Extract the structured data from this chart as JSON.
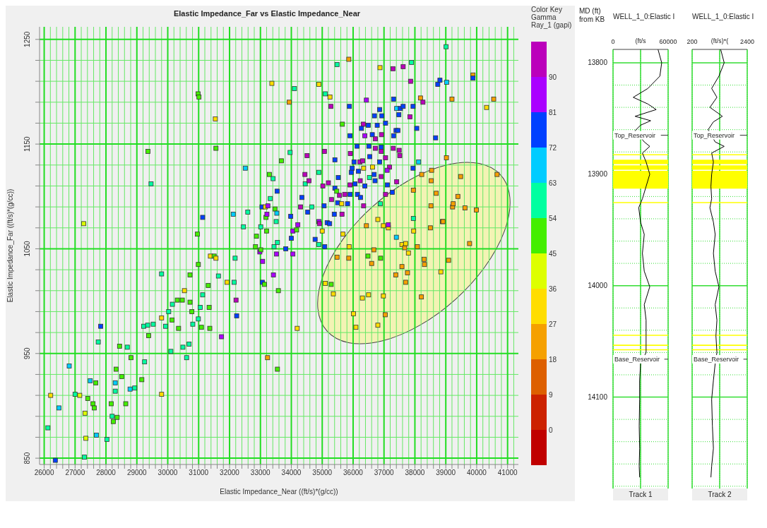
{
  "chart_data": [
    {
      "type": "scatter",
      "title": "Elastic Impedance_Far vs Elastic Impedance_Near",
      "xlabel": "Elastic Impedance_Near ((ft/s)*(g/cc))",
      "ylabel": "Elastic Impedance_Far ((ft/s)*(g/cc))",
      "legend_title": "Color Key",
      "clabel": "Gamma Ray_1 (gapi)",
      "marker": "square",
      "grid": true,
      "xlim": [
        25850,
        41350
      ],
      "ylim": [
        844,
        1262
      ],
      "xticks": [
        26000,
        {
          "value": 26200,
          "label": null
        },
        {
          "value": 26400,
          "label": null
        },
        {
          "value": 26600,
          "label": null
        },
        {
          "value": 26800,
          "label": null
        },
        27000,
        {
          "value": 27200,
          "label": null
        },
        {
          "value": 27400,
          "label": null
        },
        {
          "value": 27600,
          "label": null
        },
        {
          "value": 27800,
          "label": null
        },
        28000,
        {
          "value": 28200,
          "label": null
        },
        {
          "value": 28400,
          "label": null
        },
        {
          "value": 28600,
          "label": null
        },
        {
          "value": 28800,
          "label": null
        },
        29000,
        {
          "value": 29200,
          "label": null
        },
        {
          "value": 29400,
          "label": null
        },
        {
          "value": 29600,
          "label": null
        },
        {
          "value": 29800,
          "label": null
        },
        30000,
        {
          "value": 30200,
          "label": null
        },
        {
          "value": 30400,
          "label": null
        },
        {
          "value": 30600,
          "label": null
        },
        {
          "value": 30800,
          "label": null
        },
        31000,
        {
          "value": 31200,
          "label": null
        },
        {
          "value": 31400,
          "label": null
        },
        {
          "value": 31600,
          "label": null
        },
        {
          "value": 31800,
          "label": null
        },
        32000,
        {
          "value": 32200,
          "label": null
        },
        {
          "value": 32400,
          "label": null
        },
        {
          "value": 32600,
          "label": null
        },
        {
          "value": 32800,
          "label": null
        },
        33000,
        {
          "value": 33200,
          "label": null
        },
        {
          "value": 33400,
          "label": null
        },
        {
          "value": 33600,
          "label": null
        },
        {
          "value": 33800,
          "label": null
        },
        34000,
        {
          "value": 34200,
          "label": null
        },
        {
          "value": 34400,
          "label": null
        },
        {
          "value": 34600,
          "label": null
        },
        {
          "value": 34800,
          "label": null
        },
        35000,
        {
          "value": 35200,
          "label": null
        },
        {
          "value": 35400,
          "label": null
        },
        {
          "value": 35600,
          "label": null
        },
        {
          "value": 35800,
          "label": null
        },
        36000,
        {
          "value": 36200,
          "label": null
        },
        {
          "value": 36400,
          "label": null
        },
        {
          "value": 36600,
          "label": null
        },
        {
          "value": 36800,
          "label": null
        },
        37000,
        {
          "value": 37200,
          "label": null
        },
        {
          "value": 37400,
          "label": null
        },
        {
          "value": 37600,
          "label": null
        },
        {
          "value": 37800,
          "label": null
        },
        38000,
        {
          "value": 38200,
          "label": null
        },
        {
          "value": 38400,
          "label": null
        },
        {
          "value": 38600,
          "label": null
        },
        {
          "value": 38800,
          "label": null
        },
        39000,
        {
          "value": 39200,
          "label": null
        },
        {
          "value": 39400,
          "label": null
        },
        {
          "value": 39600,
          "label": null
        },
        {
          "value": 39800,
          "label": null
        },
        40000,
        {
          "value": 40200,
          "label": null
        },
        {
          "value": 40400,
          "label": null
        },
        {
          "value": 40600,
          "label": null
        },
        {
          "value": 40800,
          "label": null
        },
        41000,
        {
          "value": 41200,
          "label": null
        }
      ],
      "yticks": [
        850,
        {
          "value": 870,
          "label": null
        },
        {
          "value": 890,
          "label": null
        },
        {
          "value": 910,
          "label": null
        },
        {
          "value": 930,
          "label": null
        },
        950,
        {
          "value": 970,
          "label": null
        },
        {
          "value": 990,
          "label": null
        },
        {
          "value": 1010,
          "label": null
        },
        {
          "value": 1030,
          "label": null
        },
        1050,
        {
          "value": 1070,
          "label": null
        },
        {
          "value": 1090,
          "label": null
        },
        {
          "value": 1110,
          "label": null
        },
        {
          "value": 1130,
          "label": null
        },
        1150,
        {
          "value": 1170,
          "label": null
        },
        {
          "value": 1190,
          "label": null
        },
        {
          "value": 1210,
          "label": null
        },
        {
          "value": 1230,
          "label": null
        },
        1250
      ],
      "clim": [
        -9,
        99
      ],
      "cticks": [
        0,
        9,
        18,
        27,
        36,
        45,
        54,
        63,
        72,
        81,
        90
      ],
      "x": [
        26120,
        26210,
        26360,
        26480,
        26810,
        27000,
        27150,
        27280,
        27320,
        27300,
        27350,
        27410,
        27490,
        27580,
        27620,
        27670,
        27690,
        27750,
        27830,
        28030,
        28170,
        28200,
        28240,
        28300,
        28330,
        28360,
        28300,
        28440,
        28510,
        28640,
        28690,
        28780,
        28810,
        28930,
        29160,
        29250,
        29220,
        29350,
        29360,
        29380,
        29460,
        29530,
        29800,
        29800,
        29800,
        29930,
        30030,
        30100,
        30140,
        30150,
        30310,
        30350,
        30470,
        30490,
        30540,
        30610,
        30690,
        30720,
        30720,
        30780,
        30810,
        30960,
        30980,
        30990,
        30990,
        31010,
        31050,
        31090,
        31130,
        31130,
        31310,
        31340,
        31360,
        31380,
        31500,
        31540,
        31560,
        31560,
        31640,
        31740,
        31920,
        32120,
        32150,
        32180,
        32210,
        32230,
        32450,
        32510,
        32590,
        32840,
        32870,
        32980,
        33010,
        33010,
        33050,
        33070,
        33060,
        33130,
        33160,
        33180,
        33200,
        33210,
        33230,
        33240,
        33290,
        33320,
        33370,
        33410,
        33420,
        33440,
        33470,
        33510,
        33520,
        33530,
        33540,
        33550,
        33580,
        33550,
        33930,
        34100,
        33960,
        33680,
        34510,
        34440,
        34450,
        34570,
        34340,
        34300,
        34660,
        34530,
        33980,
        34050,
        34170,
        34210,
        34000,
        33820,
        34050,
        34890,
        35100,
        35250,
        35280,
        35480,
        35860,
        35070,
        35410,
        34890,
        35020,
        35200,
        35520,
        35410,
        35470,
        35300,
        35500,
        35630,
        35560,
        35730,
        35820,
        35900,
        35640,
        35390,
        35060,
        34890,
        34910,
        35000,
        35160,
        35240,
        34770,
        34890,
        35080,
        35670,
        35650,
        35880,
        35900,
        36130,
        35910,
        36030,
        35970,
        35940,
        36170,
        36220,
        36310,
        36340,
        36230,
        36060,
        35900,
        36380,
        36140,
        36240,
        36340,
        36430,
        36330,
        36270,
        36490,
        36380,
        36510,
        36540,
        36630,
        36530,
        36620,
        36690,
        36720,
        36720,
        36860,
        36930,
        36780,
        36920,
        36910,
        36910,
        36860,
        36910,
        36680,
        36710,
        37050,
        37050,
        37180,
        37100,
        37110,
        36870,
        37290,
        37620,
        37890,
        37860,
        37310,
        37410,
        37530,
        37620,
        37480,
        37940,
        37840,
        37390,
        37450,
        37310,
        37490,
        37510,
        37300,
        38060,
        37940,
        37410,
        38120,
        37270,
        37050,
        36880,
        38180,
        38260,
        38670,
        38740,
        38810,
        39010,
        39030,
        39200,
        39880,
        39880,
        40320,
        40550,
        34190,
        35100,
        35290,
        35360,
        35480,
        35860,
        35870,
        36010,
        36090,
        36300,
        36500,
        36430,
        36480,
        36600,
        36670,
        36800,
        36890,
        36980,
        36980,
        37040,
        36800,
        37140,
        37140,
        37400,
        37380,
        37580,
        37670,
        37700,
        37790,
        37580,
        37760,
        37700,
        37950,
        37950,
        37960,
        38080,
        38220,
        38210,
        38300,
        38310,
        38500,
        38520,
        38530,
        38540,
        38690,
        38840,
        38890,
        38910,
        39020,
        39090,
        39220,
        39240,
        39390,
        39480,
        39620,
        39770,
        39990,
        40660
      ],
      "values": [
        879,
        910,
        848,
        898,
        938,
        911,
        910,
        1074,
        893,
        851,
        869,
        907,
        924,
        902,
        898,
        922,
        872,
        961,
        976,
        868,
        902,
        890,
        885,
        922,
        935,
        889,
        914,
        957,
        928,
        902,
        956,
        916,
        946,
        917,
        925,
        942,
        976,
        977,
        1143,
        967,
        1112,
        978,
        984,
        1026,
        911,
        976,
        990,
        952,
        982,
        997,
        1001,
        974,
        1001,
        956,
        1010,
        946,
        959,
        1025,
        999,
        990,
        978,
        1064,
        1198,
        983,
        1035,
        1195,
        994,
        975,
        1080,
        1006,
        1015,
        994,
        974,
        1043,
        1043,
        1174,
        1146,
        1041,
        1024,
        966,
        1018,
        1083,
        1018,
        1041,
        1001,
        986,
        1071,
        1127,
        1085,
        1052,
        1062,
        1047,
        1049,
        1071,
        1090,
        1038,
        1018,
        1016,
        1090,
        1080,
        1067,
        1083,
        946,
        1091,
        1121,
        1098,
        1208,
        1117,
        1025,
        1052,
        1088,
        1076,
        1045,
        1084,
        1105,
        935,
        1010,
        1056,
        1190,
        1203,
        1142,
        1134,
        1139,
        1121,
        1112,
        1115,
        1099,
        1090,
        1090,
        1085,
        1081,
        1067,
        1068,
        1073,
        1060,
        1050,
        1045,
        1207,
        1198,
        1195,
        1186,
        1226,
        1231,
        1143,
        1135,
        1123,
        1110,
        1113,
        1118,
        1108,
        1105,
        1097,
        1094,
        1093,
        1101,
        1102,
        1093,
        1102,
        1083,
        1083,
        1091,
        1076,
        1074,
        1067,
        1075,
        1074,
        1059,
        1054,
        1052,
        1064,
        1169,
        1186,
        1158,
        1148,
        1141,
        1133,
        1127,
        1123,
        1124,
        1133,
        1134,
        1127,
        1115,
        1112,
        1111,
        1110,
        1102,
        1099,
        1091,
        1192,
        1169,
        1165,
        1168,
        1158,
        1148,
        1138,
        1128,
        1118,
        1159,
        1177,
        1155,
        1146,
        1183,
        1177,
        1168,
        1159,
        1147,
        1143,
        1133,
        1119,
        1121,
        1115,
        1170,
        1137,
        1128,
        1125,
        1111,
        1223,
        1222,
        1224,
        1228,
        1210,
        1193,
        1184,
        1184,
        1186,
        1178,
        1186,
        1176,
        1163,
        1163,
        1158,
        1144,
        1139,
        1146,
        1165,
        1127,
        1114,
        1133,
        1104,
        1102,
        1093,
        1194,
        1190,
        1156,
        1207,
        1211,
        1243,
        1209,
        1193,
        1216,
        1213,
        1185,
        1193,
        974,
        1017,
        1016,
        1007,
        1042,
        1041,
        1052,
        988,
        975,
        1003,
        1006,
        1072,
        1043,
        1036,
        1049,
        1078,
        1041,
        1072,
        1005,
        987,
        977,
        1070,
        1073,
        1061,
        1025,
        1054,
        1051,
        1055,
        1046,
        1033,
        1027,
        1018,
        1106,
        1079,
        1067,
        1052,
        1121,
        1004,
        1040,
        1035,
        1070,
        1091,
        1115,
        1125,
        1103,
        1028,
        1076,
        1076,
        1137,
        1039,
        1090,
        1093,
        1100,
        1119,
        1089,
        1055,
        1087,
        1121
      ],
      "cvalues": [
        58,
        31,
        76,
        67,
        67,
        58,
        40,
        40,
        40,
        58,
        40,
        50,
        67,
        50,
        50,
        50,
        67,
        58,
        76,
        58,
        50,
        58,
        50,
        67,
        50,
        50,
        58,
        50,
        50,
        50,
        58,
        67,
        50,
        58,
        50,
        58,
        58,
        58,
        50,
        50,
        58,
        58,
        31,
        58,
        31,
        58,
        58,
        58,
        50,
        58,
        50,
        50,
        50,
        58,
        31,
        58,
        58,
        50,
        50,
        50,
        58,
        50,
        50,
        58,
        50,
        50,
        58,
        50,
        76,
        58,
        50,
        50,
        50,
        31,
        50,
        31,
        50,
        31,
        58,
        85,
        31,
        67,
        58,
        58,
        95,
        76,
        58,
        67,
        58,
        50,
        50,
        85,
        50,
        58,
        76,
        85,
        76,
        50,
        31,
        50,
        50,
        85,
        22,
        85,
        50,
        58,
        31,
        58,
        85,
        58,
        50,
        58,
        85,
        67,
        76,
        50,
        50,
        58,
        22,
        58,
        58,
        50,
        95,
        95,
        58,
        95,
        76,
        95,
        58,
        76,
        76,
        85,
        50,
        85,
        76,
        76,
        85,
        31,
        58,
        31,
        95,
        58,
        22,
        95,
        76,
        58,
        95,
        95,
        76,
        76,
        50,
        95,
        76,
        31,
        95,
        95,
        76,
        76,
        95,
        76,
        76,
        85,
        95,
        31,
        76,
        76,
        76,
        58,
        76,
        31,
        50,
        76,
        76,
        76,
        95,
        76,
        76,
        76,
        76,
        95,
        95,
        31,
        95,
        76,
        95,
        76,
        76,
        76,
        95,
        85,
        95,
        76,
        76,
        85,
        76,
        76,
        31,
        58,
        76,
        76,
        95,
        95,
        76,
        76,
        76,
        95,
        76,
        95,
        76,
        95,
        76,
        76,
        76,
        95,
        95,
        85,
        76,
        31,
        95,
        95,
        58,
        95,
        76,
        67,
        76,
        76,
        76,
        76,
        95,
        76,
        76,
        76,
        95,
        95,
        95,
        76,
        76,
        95,
        67,
        76,
        95,
        58,
        22,
        95,
        76,
        76,
        76,
        58,
        67,
        22,
        22,
        76,
        31,
        22,
        31,
        31,
        50,
        31,
        22,
        22,
        31,
        31,
        31,
        31,
        31,
        22,
        50,
        22,
        22,
        31,
        50,
        31,
        31,
        22,
        31,
        31,
        85,
        67,
        22,
        31,
        22,
        31,
        31,
        22,
        22,
        22,
        22,
        58,
        31,
        22,
        22,
        22,
        22,
        22,
        22,
        22,
        22,
        22,
        22,
        31,
        22,
        22,
        22,
        22,
        22,
        22,
        22,
        22,
        22,
        22,
        22,
        22
      ]
    },
    {
      "type": "line",
      "title": "WELL_1_0:Elastic I",
      "subtitle": "(ft/s",
      "xlabel": "Track 1",
      "ylabel": "MD (ft) from KB",
      "marker": "none",
      "grid": true,
      "xlim": [
        0,
        60000
      ],
      "xticks": [
        0,
        {
          "value": 30000,
          "label": null
        },
        60000
      ],
      "ylim": [
        14182,
        13788
      ],
      "yticks": [
        13800,
        {
          "value": 13820,
          "label": null
        },
        {
          "value": 13840,
          "label": null
        },
        {
          "value": 13860,
          "label": null
        },
        {
          "value": 13880,
          "label": null
        },
        13900,
        {
          "value": 13920,
          "label": null
        },
        {
          "value": 13940,
          "label": null
        },
        {
          "value": 13960,
          "label": null
        },
        {
          "value": 13980,
          "label": null
        },
        14000,
        {
          "value": 14020,
          "label": null
        },
        {
          "value": 14040,
          "label": null
        },
        {
          "value": 14060,
          "label": null
        },
        {
          "value": 14080,
          "label": null
        },
        14100,
        {
          "value": 14120,
          "label": null
        },
        {
          "value": 14140,
          "label": null
        },
        {
          "value": 14160,
          "label": null
        },
        {
          "value": 14180,
          "label": null
        }
      ],
      "series": [
        {
          "color": "#000000",
          "x": [
            49000,
            53000,
            51000,
            38000,
            22000,
            38000,
            47000,
            24000,
            41000,
            30000,
            24000,
            null,
            34000,
            40000,
            32000,
            36000,
            40000,
            36000,
            32000,
            28000,
            30000,
            34000,
            32000,
            34000,
            40000,
            34000,
            36000,
            36000,
            36000,
            null,
            30000,
            29000,
            29000,
            28500,
            29000,
            28500,
            29000
          ],
          "values": [
            13788,
            13800,
            13812,
            13823,
            13831,
            13837,
            13842,
            13848,
            13852,
            13856,
            13861,
            null,
            13871,
            13875,
            13881,
            13889,
            13900,
            13911,
            13922,
            13930,
            13943,
            13954,
            13971,
            13987,
            14001,
            14017,
            14031,
            14045,
            14060,
            null,
            14070,
            14085,
            14102,
            14126,
            14146,
            14162,
            14172
          ]
        }
      ],
      "ref_lines": [
        {
          "axis": "y",
          "value": 13865,
          "label": "Top_Reservoir"
        },
        {
          "axis": "y",
          "value": 14066,
          "label": "Base_Reservoir"
        }
      ],
      "bands": [
        {
          "axis": "y",
          "from": 13882,
          "to": 13883,
          "color": "#ffff00"
        },
        {
          "axis": "y",
          "from": 13887,
          "to": 13891,
          "color": "#ffff00"
        },
        {
          "axis": "y",
          "from": 13892,
          "to": 13896,
          "color": "#ffff00"
        },
        {
          "axis": "y",
          "from": 13897,
          "to": 13913,
          "color": "#ffff00"
        },
        {
          "axis": "y",
          "from": 13925,
          "to": 13926,
          "color": "#ffff00"
        },
        {
          "axis": "y",
          "from": 14044,
          "to": 14045,
          "color": "#ffff00"
        },
        {
          "axis": "y",
          "from": 14053,
          "to": 14054,
          "color": "#ffff00"
        },
        {
          "axis": "y",
          "from": 14057,
          "to": 14058,
          "color": "#ffff00"
        }
      ]
    },
    {
      "type": "line",
      "title": "WELL_1_0:Elastic I",
      "subtitle": "(ft/s)*(",
      "xlabel": "Track 2",
      "marker": "none",
      "grid": true,
      "tick_labels": "x",
      "xlim": [
        200,
        2400
      ],
      "xticks": [
        200,
        {
          "value": 1300,
          "label": null
        },
        2400
      ],
      "ylim": [
        14182,
        13788
      ],
      "yticks": [
        13800,
        {
          "value": 13820,
          "label": null
        },
        {
          "value": 13840,
          "label": null
        },
        {
          "value": 13860,
          "label": null
        },
        {
          "value": 13880,
          "label": null
        },
        13900,
        {
          "value": 13920,
          "label": null
        },
        {
          "value": 13940,
          "label": null
        },
        {
          "value": 13960,
          "label": null
        },
        {
          "value": 13980,
          "label": null
        },
        14000,
        {
          "value": 14020,
          "label": null
        },
        {
          "value": 14040,
          "label": null
        },
        {
          "value": 14060,
          "label": null
        },
        {
          "value": 14080,
          "label": null
        },
        14100,
        {
          "value": 14120,
          "label": null
        },
        {
          "value": 14140,
          "label": null
        },
        {
          "value": 14160,
          "label": null
        },
        {
          "value": 14180,
          "label": null
        }
      ],
      "series": [
        {
          "color": "#000000",
          "x": [
            1340,
            1480,
            1270,
            980,
            1190,
            910,
            1410,
            1050,
            840,
            null,
            1120,
            1480,
            980,
            1050,
            980,
            950,
            980,
            910,
            1050,
            1120,
            1050,
            1120,
            1270,
            1120,
            1190,
            1150,
            1190,
            null,
            1120,
            1050,
            980,
            1010,
            1050,
            980,
            950
          ],
          "values": [
            13788,
            13800,
            13812,
            13823,
            13831,
            13840,
            13848,
            13853,
            13860,
            null,
            13871,
            13875,
            13881,
            13889,
            13900,
            13911,
            13922,
            13930,
            13943,
            13954,
            13971,
            13987,
            14001,
            14017,
            14031,
            14045,
            14060,
            null,
            14070,
            14085,
            14102,
            14126,
            14146,
            14162,
            14172
          ]
        }
      ],
      "ref_lines": [
        {
          "axis": "y",
          "value": 13865,
          "label": "Top_Reservoir"
        },
        {
          "axis": "y",
          "value": 14066,
          "label": "Base_Reservoir"
        }
      ],
      "bands": [
        {
          "axis": "y",
          "from": 13882,
          "to": 13883,
          "color": "#ffff00"
        },
        {
          "axis": "y",
          "from": 13887,
          "to": 13891,
          "color": "#ffff00"
        },
        {
          "axis": "y",
          "from": 13892,
          "to": 13896,
          "color": "#ffff00"
        },
        {
          "axis": "y",
          "from": 13897,
          "to": 13913,
          "color": "#ffff00"
        },
        {
          "axis": "y",
          "from": 13925,
          "to": 13926,
          "color": "#ffff00"
        },
        {
          "axis": "y",
          "from": 14044,
          "to": 14045,
          "color": "#ffff00"
        },
        {
          "axis": "y",
          "from": 14053,
          "to": 14054,
          "color": "#ffff00"
        },
        {
          "axis": "y",
          "from": 14057,
          "to": 14058,
          "color": "#ffff00"
        }
      ]
    }
  ]
}
